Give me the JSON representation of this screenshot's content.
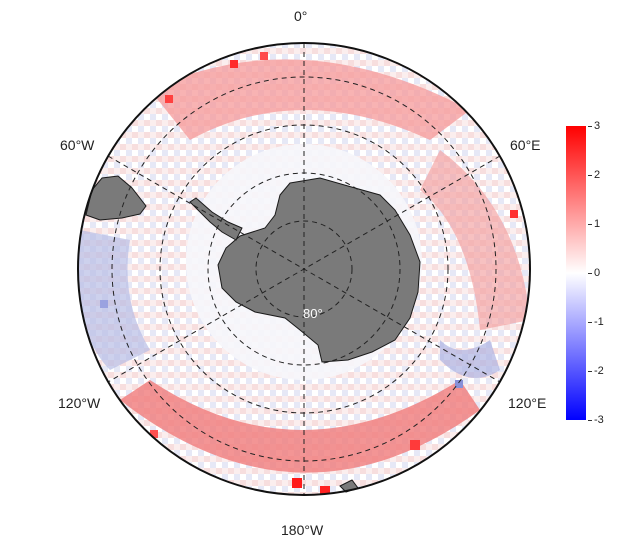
{
  "map": {
    "projection": "south-polar-stereographic",
    "longitude_labels": {
      "lon_0": "0°",
      "lon_60e": "60°E",
      "lon_60w": "60°W",
      "lon_120e": "120°E",
      "lon_120w": "120°W",
      "lon_180": "180°W"
    },
    "latitude_label": "80°",
    "colors": {
      "positive": "#ff0000",
      "neutral": "#ffffff",
      "negative": "#0000ff",
      "land": "#7a7a7a",
      "grid": "#222222"
    }
  },
  "colorbar": {
    "ticks": [
      "3",
      "2",
      "1",
      "0",
      "-1",
      "-2",
      "-3"
    ],
    "min": -3,
    "max": 3
  }
}
